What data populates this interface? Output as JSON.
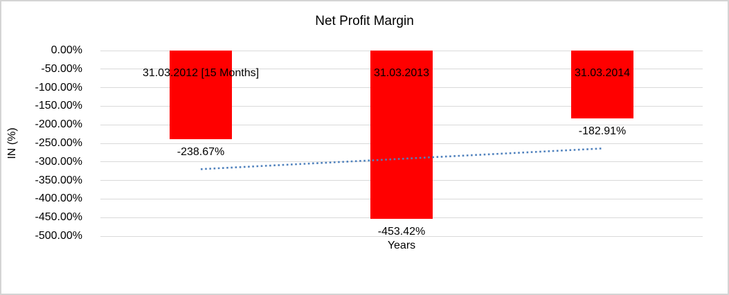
{
  "chart_data": {
    "type": "bar",
    "title": "Net Profit Margin",
    "categories": [
      "31.03.2012 [15 Months]",
      "31.03.2013",
      "31.03.2014"
    ],
    "values": [
      -238.67,
      -453.42,
      -182.91
    ],
    "value_labels": [
      "-238.67%",
      "-453.42%",
      "-182.91%"
    ],
    "xlabel": "Years",
    "ylabel": "IN (%)",
    "ylim": [
      -500,
      0
    ],
    "yticks": [
      0,
      -50,
      -100,
      -150,
      -200,
      -250,
      -300,
      -350,
      -400,
      -450,
      -500
    ],
    "ytick_labels": [
      "0.00%",
      "-50.00%",
      "-100.00%",
      "-150.00%",
      "-200.00%",
      "-250.00%",
      "-300.00%",
      "-350.00%",
      "-400.00%",
      "-450.00%",
      "-500.00%"
    ],
    "grid": true,
    "legend": false,
    "bar_color": "#ff0000",
    "value_label_position": "outside_end",
    "trendline": {
      "type": "linear",
      "style": "dotted",
      "color": "#4f81bd",
      "points": [
        {
          "category_index": 0,
          "value": -319.55
        },
        {
          "category_index": 2,
          "value": -263.79
        }
      ]
    }
  },
  "colors": {
    "gridline": "#d9d9d9",
    "frame_border": "#d4d4d4",
    "text": "#000000"
  }
}
